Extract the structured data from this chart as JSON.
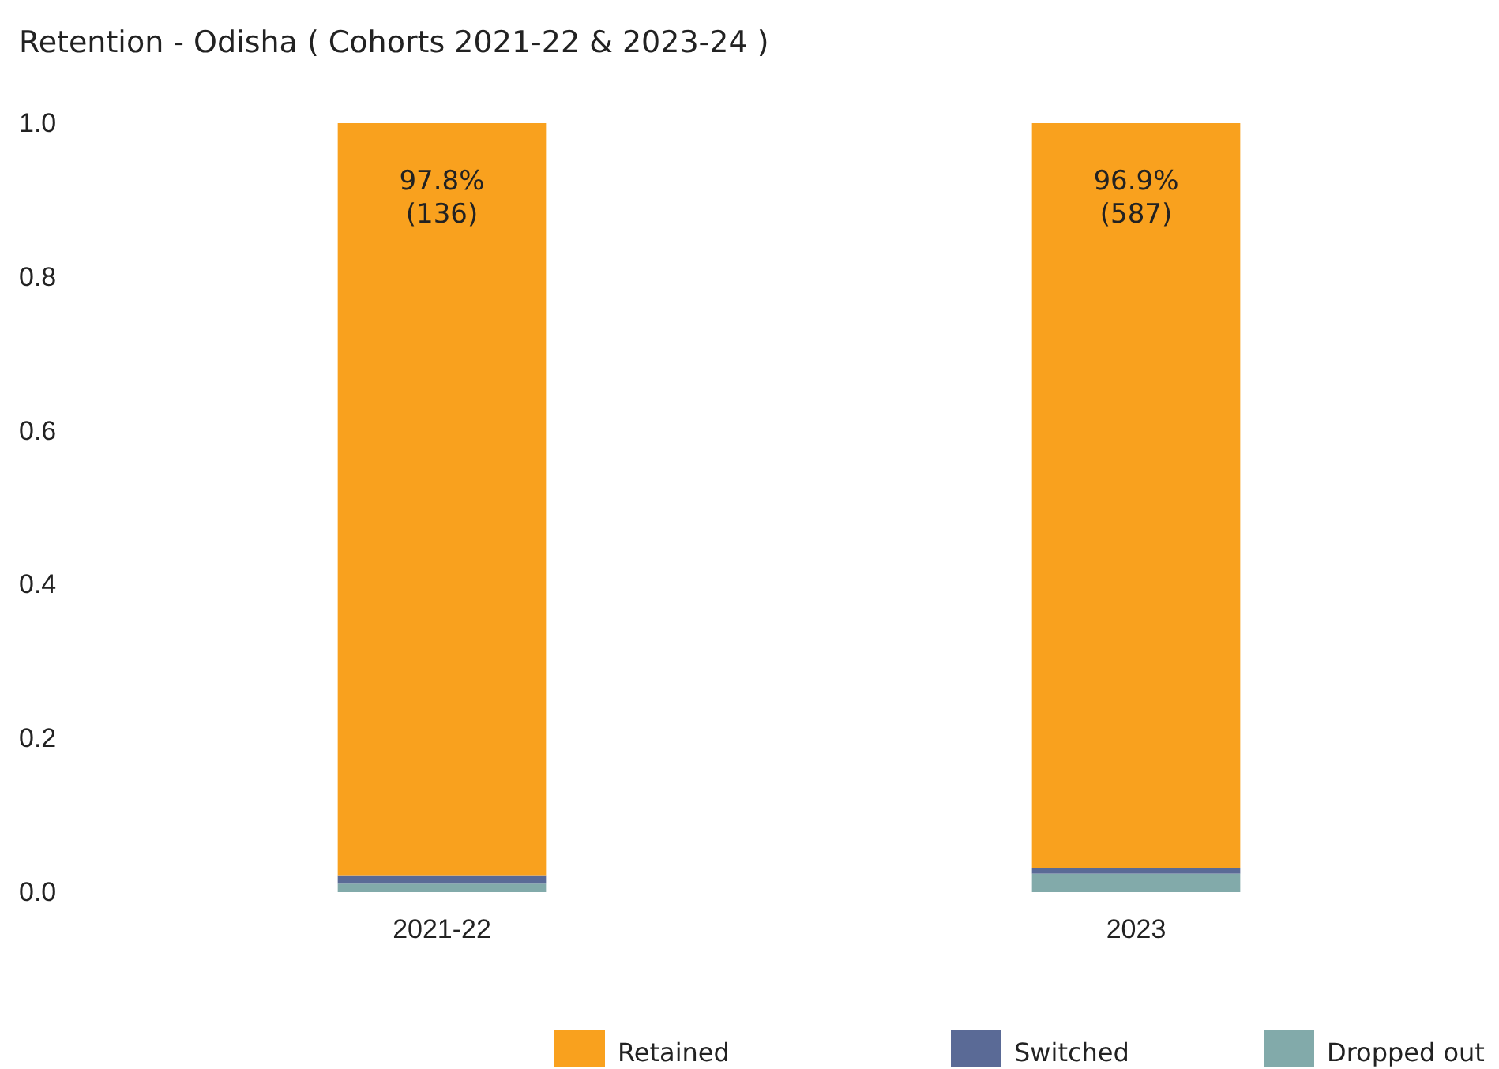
{
  "chart_data": {
    "type": "bar",
    "title": "Retention - Odisha ( Cohorts 2021-22 & 2023-24 )",
    "categories": [
      "2021-22",
      "2023"
    ],
    "stacked": true,
    "ylim": [
      0,
      1
    ],
    "yticks": [
      {
        "value": 0,
        "label": "0.0"
      },
      {
        "value": 0.2,
        "label": "0.2"
      },
      {
        "value": 0.4,
        "label": "0.4"
      },
      {
        "value": 0.6,
        "label": "0.6"
      },
      {
        "value": 0.8,
        "label": "0.8"
      },
      {
        "value": 1,
        "label": "1.0"
      }
    ],
    "legend": "bottom",
    "grid": false,
    "series": [
      {
        "name": "Dropped out",
        "color": "#82aaaa",
        "values": [
          0.011,
          0.024
        ]
      },
      {
        "name": "Switched",
        "color": "#5a6a96",
        "values": [
          0.011,
          0.007
        ]
      },
      {
        "name": "Retained",
        "color": "#f9a11e",
        "values": [
          0.978,
          0.969
        ],
        "value_labels": [
          "97.8% (136)",
          "96.9% (587)"
        ]
      }
    ]
  }
}
